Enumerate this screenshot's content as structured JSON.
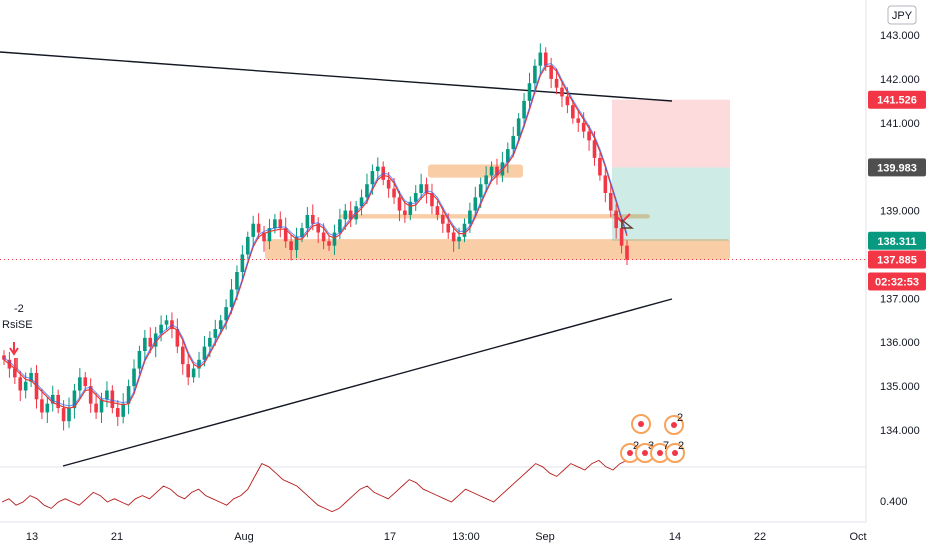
{
  "chart_data": {
    "type": "candlestick",
    "currency_label": "JPY",
    "ylim": [
      133.6,
      143.4
    ],
    "y_ticks": [
      "143.000",
      "142.000",
      "141.000",
      "139.000",
      "137.000",
      "136.000",
      "135.000",
      "134.000"
    ],
    "x_ticks": [
      "13",
      "21",
      "Aug",
      "17",
      "13:00",
      "Sep",
      "14",
      "22",
      "Oct"
    ],
    "price_tags": {
      "stop": {
        "label": "141.526",
        "value": 141.526,
        "color": "#f23645"
      },
      "entry": {
        "label": "139.983",
        "value": 139.983,
        "color": "#4f4f4f"
      },
      "target": {
        "label": "138.311",
        "value": 138.311,
        "color": "#089981"
      },
      "last": {
        "label": "137.885",
        "value": 137.885,
        "color": "#f23645"
      },
      "countdown": {
        "label": "02:32:53",
        "color": "#f23645"
      }
    },
    "zones": [
      {
        "name": "support-main",
        "y_from": 137.88,
        "y_to": 138.35
      },
      {
        "name": "support-band",
        "y_from": 138.82,
        "y_to": 138.92
      },
      {
        "name": "resistance-box",
        "y_from": 139.75,
        "y_to": 140.05
      }
    ],
    "trendlines": [
      {
        "name": "upper",
        "from": [
          0,
          142.55
        ],
        "to": [
          0.78,
          141.55
        ]
      },
      {
        "name": "lower",
        "from": [
          0.07,
          133.4
        ],
        "to": [
          0.78,
          137.0
        ]
      }
    ],
    "close_series": [
      135.6,
      135.4,
      135.2,
      134.9,
      135.1,
      135.3,
      134.7,
      134.4,
      134.6,
      134.8,
      134.5,
      134.2,
      134.5,
      134.9,
      135.2,
      135.0,
      134.6,
      134.4,
      134.7,
      134.9,
      134.5,
      134.3,
      134.6,
      135.0,
      135.4,
      135.8,
      136.1,
      135.9,
      136.2,
      136.4,
      136.5,
      136.3,
      135.9,
      135.5,
      135.2,
      135.4,
      135.6,
      135.9,
      136.1,
      136.3,
      136.5,
      136.8,
      137.2,
      137.6,
      138.0,
      138.4,
      138.7,
      138.5,
      138.3,
      138.6,
      138.8,
      138.6,
      138.3,
      138.1,
      138.4,
      138.6,
      138.9,
      138.7,
      138.5,
      138.3,
      138.2,
      138.5,
      138.8,
      139.0,
      138.8,
      139.1,
      139.3,
      139.6,
      139.9,
      140.0,
      139.7,
      139.5,
      139.3,
      139.0,
      138.9,
      139.2,
      139.4,
      139.6,
      139.4,
      139.1,
      138.9,
      138.7,
      138.5,
      138.3,
      138.4,
      138.7,
      139.0,
      139.3,
      139.6,
      139.8,
      140.0,
      139.8,
      140.1,
      140.4,
      140.7,
      141.1,
      141.5,
      141.9,
      142.3,
      142.6,
      142.3,
      142.0,
      141.8,
      141.6,
      141.4,
      141.1,
      141.0,
      140.8,
      140.6,
      140.2,
      139.8,
      139.4,
      139.0,
      138.6,
      138.2,
      137.88
    ],
    "indicator": {
      "label_value": "-2",
      "label_name": "RsiSE",
      "axis_tick": "0.400",
      "values": [
        0.4,
        0.41,
        0.39,
        0.4,
        0.42,
        0.41,
        0.39,
        0.38,
        0.4,
        0.41,
        0.4,
        0.39,
        0.41,
        0.43,
        0.42,
        0.4,
        0.41,
        0.4,
        0.39,
        0.41,
        0.42,
        0.41,
        0.43,
        0.45,
        0.44,
        0.42,
        0.41,
        0.43,
        0.44,
        0.42,
        0.41,
        0.4,
        0.39,
        0.41,
        0.42,
        0.44,
        0.48,
        0.52,
        0.51,
        0.49,
        0.47,
        0.46,
        0.45,
        0.43,
        0.41,
        0.39,
        0.38,
        0.37,
        0.38,
        0.4,
        0.42,
        0.44,
        0.45,
        0.43,
        0.42,
        0.41,
        0.43,
        0.45,
        0.47,
        0.46,
        0.44,
        0.43,
        0.42,
        0.41,
        0.4,
        0.42,
        0.44,
        0.43,
        0.42,
        0.41,
        0.4,
        0.42,
        0.44,
        0.46,
        0.48,
        0.5,
        0.52,
        0.51,
        0.49,
        0.48,
        0.5,
        0.52,
        0.51,
        0.5,
        0.52,
        0.53,
        0.51,
        0.5,
        0.52,
        0.53
      ]
    },
    "events": {
      "badge_top": "2",
      "badges_bottom": [
        "2",
        "3",
        "7",
        "2"
      ]
    }
  }
}
